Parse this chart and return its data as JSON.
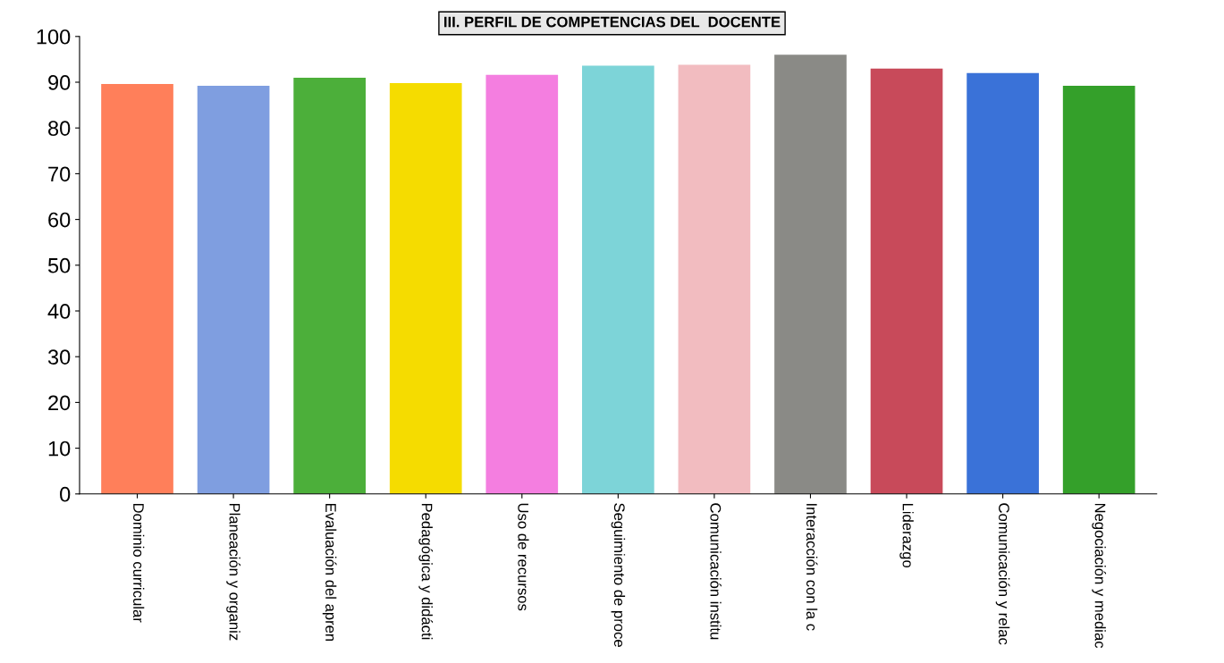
{
  "chart_data": {
    "type": "bar",
    "title": "III. PERFIL DE COMPETENCIAS DEL  DOCENTE",
    "categories": [
      "Dominio curricular",
      "Planeación y organiz",
      "Evaluación del apren",
      "Pedagógica y didácti",
      "Uso de recursos",
      "Seguimiento de proce",
      "Comunicación institu",
      "Interacción con la c",
      "Liderazgo",
      "Comunicación y relac",
      "Negociación y mediac"
    ],
    "values": [
      89.6,
      89.2,
      91,
      89.8,
      91.6,
      93.6,
      93.8,
      96,
      93,
      92,
      89.2
    ],
    "colors": [
      "#ff7f5a",
      "#7f9ee0",
      "#4caf3a",
      "#f5dc00",
      "#f47ee0",
      "#7dd4d8",
      "#f2bcc0",
      "#8a8a86",
      "#c84a5a",
      "#3a72d8",
      "#34a02a"
    ],
    "ylim": [
      0,
      100
    ],
    "yticks": [
      0,
      10,
      20,
      30,
      40,
      50,
      60,
      70,
      80,
      90,
      100
    ],
    "grid": false,
    "legend": false
  }
}
